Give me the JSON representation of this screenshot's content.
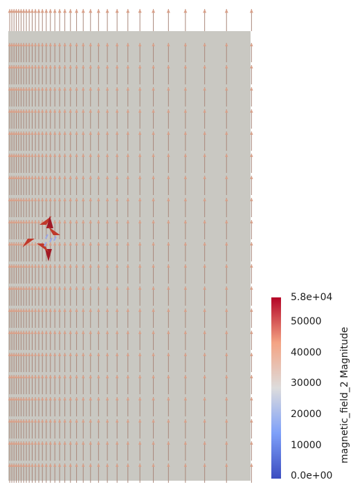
{
  "scalar_bar": {
    "title": "magnetic_field_2 Magnitude",
    "range": [
      0,
      58000
    ],
    "tick_labels": [
      "5.8e+04",
      "50000",
      "40000",
      "30000",
      "20000",
      "10000",
      "0.0e+00"
    ],
    "tick_values": [
      58000,
      50000,
      40000,
      30000,
      20000,
      10000,
      0
    ],
    "colormap": "Cool to Warm",
    "colors": {
      "low": "#3b4cc0",
      "mid": "#dddcdc",
      "high": "#b40426"
    }
  },
  "scene": {
    "background": "#ffffff",
    "plane_color": "#c9c8c2",
    "glyph_color": "#d9a089",
    "glyph_shaft_color": "#a9877a"
  }
}
